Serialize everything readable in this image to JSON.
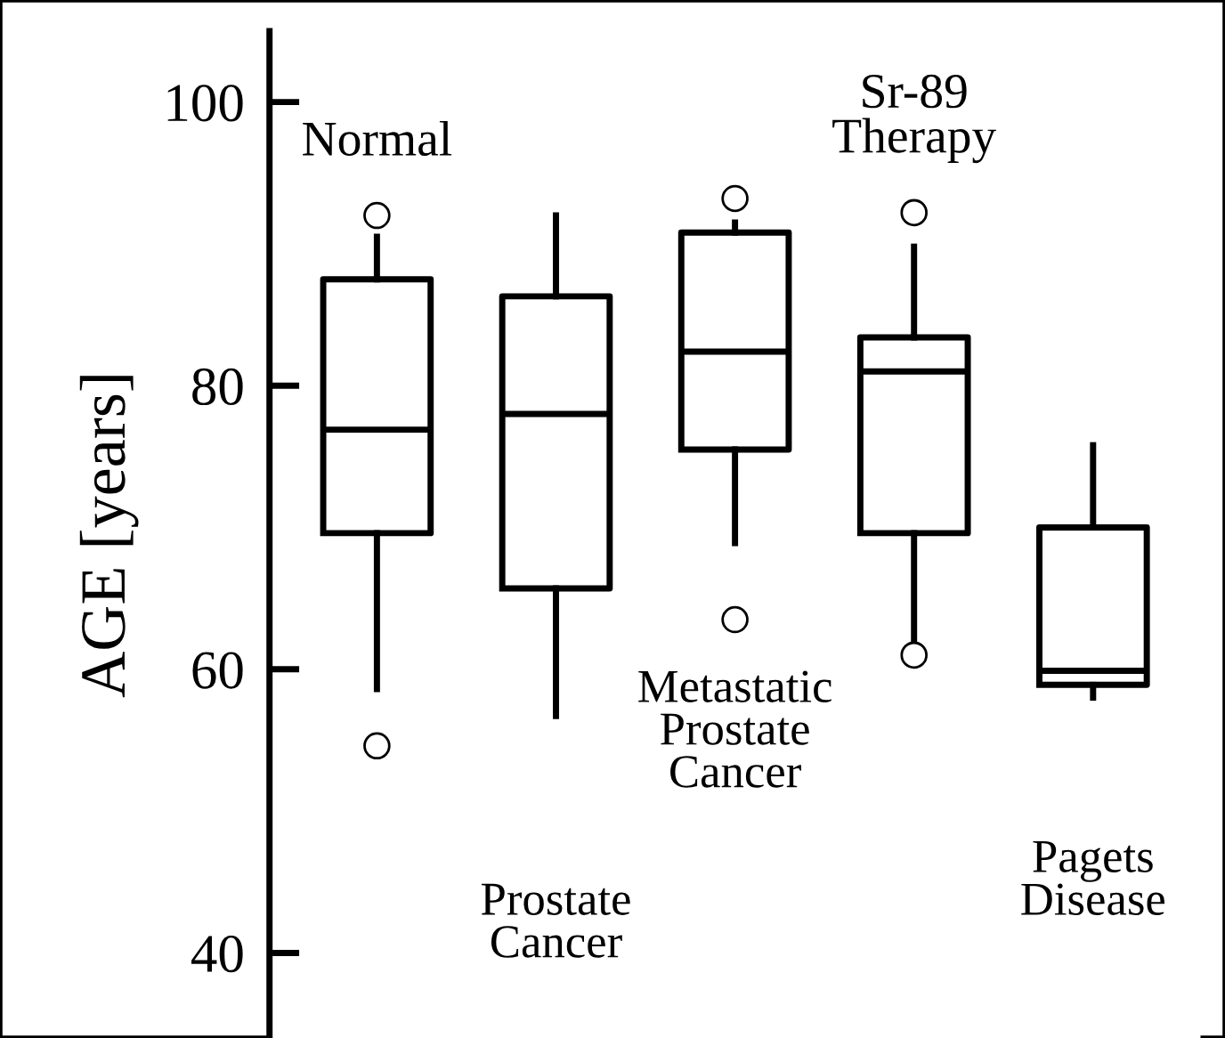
{
  "chart_data": {
    "type": "box",
    "ylabel": "AGE [years]",
    "categories": [
      "Normal",
      "Prostate Cancer",
      "Metastatic Prostate Cancer",
      "Sr-89 Therapy",
      "Pagets Disease"
    ],
    "boxes": [
      {
        "low": 58.6,
        "q1": 69.6,
        "median": 76.9,
        "q3": 87.5,
        "high": 90.5,
        "outliers": [
          92,
          54.6
        ]
      },
      {
        "low": 56.7,
        "q1": 65.7,
        "median": 78,
        "q3": 86.3,
        "high": 92
      },
      {
        "low": 68.9,
        "q1": 75.5,
        "median": 82.4,
        "q3": 90.8,
        "high": 91.5,
        "outliers": [
          93.2,
          63.5
        ]
      },
      {
        "low": 62,
        "q1": 69.6,
        "median": 81,
        "q3": 83.4,
        "high": 89.8,
        "outliers": [
          92.2,
          61
        ]
      },
      {
        "low": 58,
        "q1": 58.9,
        "median": 59.9,
        "q3": 70,
        "high": 75.8
      }
    ],
    "ylim": [
      34,
      105
    ],
    "yticks": [
      40,
      60,
      80,
      100
    ],
    "grid": false
  }
}
